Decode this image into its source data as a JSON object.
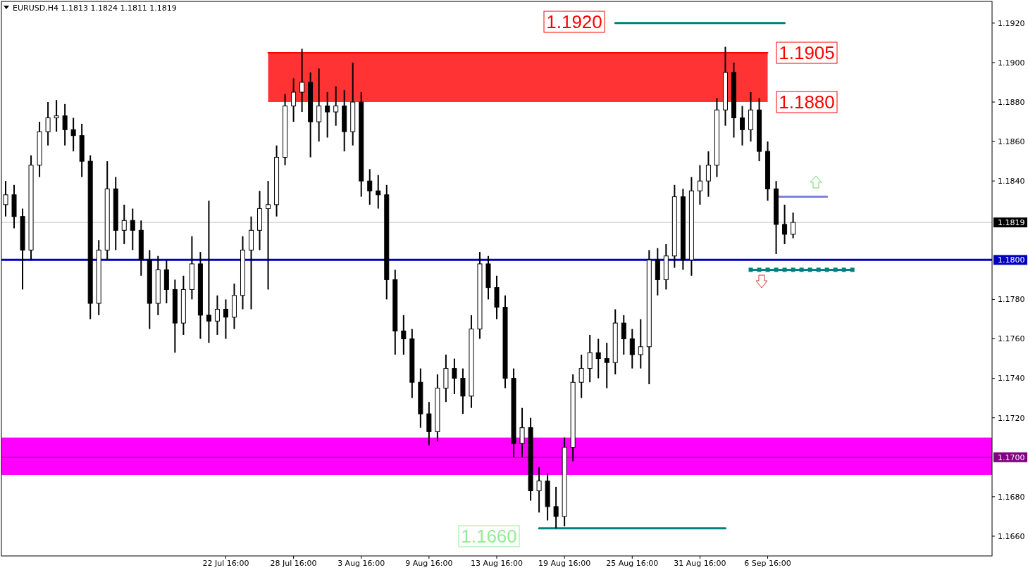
{
  "chart_data": {
    "type": "candlestick",
    "title": "EURUSD,H4  1.1813 1.1824 1.1811 1.1819",
    "categories": [
      null,
      null,
      null,
      null,
      null,
      null,
      null,
      null,
      null,
      null,
      null,
      null,
      null,
      null,
      null,
      null,
      null,
      null,
      null,
      null,
      null,
      null,
      null,
      null,
      null,
      null,
      "22 Jul 16:00",
      null,
      null,
      null,
      null,
      null,
      null,
      null,
      "28 Jul 16:00",
      null,
      null,
      null,
      null,
      null,
      null,
      null,
      "3 Aug 16:00",
      null,
      null,
      null,
      null,
      null,
      null,
      null,
      "9 Aug 16:00",
      null,
      null,
      null,
      null,
      null,
      null,
      null,
      "13 Aug 16:00",
      null,
      null,
      null,
      null,
      null,
      null,
      null,
      "19 Aug 16:00",
      null,
      null,
      null,
      null,
      null,
      null,
      null,
      "25 Aug 16:00",
      null,
      null,
      null,
      null,
      null,
      null,
      null,
      "31 Aug 16:00",
      null,
      null,
      null,
      null,
      null,
      null,
      null,
      "6 Sep 16:00",
      null,
      null,
      null,
      null,
      null,
      null,
      null,
      null,
      null,
      null,
      null,
      null,
      null,
      null,
      null,
      null,
      null,
      null,
      null,
      null,
      null,
      null,
      null,
      null,
      null,
      null
    ],
    "ohlc": [
      [
        1.1828,
        1.184,
        1.1822,
        1.1833
      ],
      [
        1.1833,
        1.1838,
        1.1816,
        1.1822
      ],
      [
        1.1822,
        1.1826,
        1.1785,
        1.1805
      ],
      [
        1.1805,
        1.1853,
        1.18,
        1.1848
      ],
      [
        1.1848,
        1.187,
        1.1842,
        1.1865
      ],
      [
        1.1865,
        1.188,
        1.1858,
        1.1872
      ],
      [
        1.1872,
        1.1881,
        1.1865,
        1.1873
      ],
      [
        1.1873,
        1.1879,
        1.1858,
        1.1866
      ],
      [
        1.1866,
        1.1872,
        1.1855,
        1.1863
      ],
      [
        1.1863,
        1.1869,
        1.1842,
        1.185
      ],
      [
        1.185,
        1.1853,
        1.177,
        1.1778
      ],
      [
        1.1778,
        1.181,
        1.1772,
        1.1805
      ],
      [
        1.1805,
        1.185,
        1.18,
        1.1836
      ],
      [
        1.1836,
        1.1842,
        1.1805,
        1.1815
      ],
      [
        1.1815,
        1.1828,
        1.1808,
        1.182
      ],
      [
        1.182,
        1.1826,
        1.1805,
        1.1815
      ],
      [
        1.1815,
        1.182,
        1.1792,
        1.18
      ],
      [
        1.18,
        1.1805,
        1.1765,
        1.1778
      ],
      [
        1.1778,
        1.1802,
        1.1772,
        1.1795
      ],
      [
        1.1795,
        1.18,
        1.1778,
        1.1785
      ],
      [
        1.1785,
        1.179,
        1.1753,
        1.1768
      ],
      [
        1.1768,
        1.1792,
        1.1762,
        1.1785
      ],
      [
        1.1785,
        1.1812,
        1.178,
        1.1798
      ],
      [
        1.1798,
        1.1804,
        1.176,
        1.1772
      ],
      [
        1.1772,
        1.183,
        1.1758,
        1.1769
      ],
      [
        1.1769,
        1.1782,
        1.1762,
        1.1775
      ],
      [
        1.1775,
        1.178,
        1.176,
        1.1771
      ],
      [
        1.1771,
        1.1788,
        1.1765,
        1.1782
      ],
      [
        1.1782,
        1.1812,
        1.1775,
        1.1805
      ],
      [
        1.1805,
        1.1822,
        1.1775,
        1.1815
      ],
      [
        1.1815,
        1.1835,
        1.1805,
        1.1826
      ],
      [
        1.1826,
        1.184,
        1.1785,
        1.1828
      ],
      [
        1.1828,
        1.1858,
        1.1822,
        1.1852
      ],
      [
        1.1852,
        1.1884,
        1.1848,
        1.1878
      ],
      [
        1.1878,
        1.1892,
        1.187,
        1.1885
      ],
      [
        1.1885,
        1.1907,
        1.1875,
        1.189
      ],
      [
        1.189,
        1.1895,
        1.1852,
        1.187
      ],
      [
        1.187,
        1.1897,
        1.186,
        1.1878
      ],
      [
        1.1878,
        1.1885,
        1.1862,
        1.1875
      ],
      [
        1.1875,
        1.1888,
        1.1868,
        1.1878
      ],
      [
        1.1878,
        1.1886,
        1.1855,
        1.1865
      ],
      [
        1.1865,
        1.19,
        1.1858,
        1.188
      ],
      [
        1.188,
        1.1885,
        1.1832,
        1.184
      ],
      [
        1.184,
        1.1846,
        1.1828,
        1.1835
      ],
      [
        1.1835,
        1.1843,
        1.1826,
        1.1833
      ],
      [
        1.1833,
        1.1838,
        1.178,
        1.179
      ],
      [
        1.179,
        1.1795,
        1.1752,
        1.1764
      ],
      [
        1.1764,
        1.1772,
        1.1752,
        1.176
      ],
      [
        1.176,
        1.1765,
        1.173,
        1.1738
      ],
      [
        1.1738,
        1.1745,
        1.1715,
        1.1722
      ],
      [
        1.1722,
        1.1728,
        1.1706,
        1.1713
      ],
      [
        1.1713,
        1.1742,
        1.1708,
        1.1735
      ],
      [
        1.1735,
        1.1752,
        1.1728,
        1.1745
      ],
      [
        1.1745,
        1.175,
        1.1732,
        1.174
      ],
      [
        1.174,
        1.1745,
        1.1722,
        1.1731
      ],
      [
        1.1731,
        1.1772,
        1.1725,
        1.1765
      ],
      [
        1.1765,
        1.1804,
        1.176,
        1.1798
      ],
      [
        1.1798,
        1.1802,
        1.178,
        1.1786
      ],
      [
        1.1786,
        1.1792,
        1.177,
        1.1776
      ],
      [
        1.1776,
        1.1782,
        1.1735,
        1.174
      ],
      [
        1.174,
        1.1745,
        1.17,
        1.1707
      ],
      [
        1.1707,
        1.1725,
        1.17,
        1.1715
      ],
      [
        1.1715,
        1.172,
        1.1678,
        1.1683
      ],
      [
        1.1683,
        1.1695,
        1.1672,
        1.1688
      ],
      [
        1.1688,
        1.1692,
        1.1668,
        1.1675
      ],
      [
        1.1675,
        1.1685,
        1.1664,
        1.167
      ],
      [
        1.167,
        1.171,
        1.1665,
        1.1705
      ],
      [
        1.1705,
        1.1742,
        1.1698,
        1.1738
      ],
      [
        1.1738,
        1.1752,
        1.173,
        1.1745
      ],
      [
        1.1745,
        1.1762,
        1.1738,
        1.1753
      ],
      [
        1.1753,
        1.176,
        1.174,
        1.175
      ],
      [
        1.175,
        1.1758,
        1.1735,
        1.1748
      ],
      [
        1.1748,
        1.1775,
        1.1742,
        1.1768
      ],
      [
        1.1768,
        1.1772,
        1.1752,
        1.176
      ],
      [
        1.176,
        1.1765,
        1.1745,
        1.1752
      ],
      [
        1.1752,
        1.177,
        1.1745,
        1.1756
      ],
      [
        1.1756,
        1.1805,
        1.1737,
        1.18
      ],
      [
        1.18,
        1.1806,
        1.1782,
        1.179
      ],
      [
        1.179,
        1.1808,
        1.1785,
        1.1802
      ],
      [
        1.1802,
        1.1838,
        1.1796,
        1.1832
      ],
      [
        1.1832,
        1.1836,
        1.1795,
        1.18
      ],
      [
        1.18,
        1.1842,
        1.1792,
        1.1835
      ],
      [
        1.1835,
        1.1848,
        1.1828,
        1.184
      ],
      [
        1.184,
        1.1855,
        1.1832,
        1.1848
      ],
      [
        1.1848,
        1.1882,
        1.1842,
        1.1876
      ],
      [
        1.1876,
        1.1908,
        1.1868,
        1.1895
      ],
      [
        1.1895,
        1.19,
        1.1862,
        1.1872
      ],
      [
        1.1872,
        1.1878,
        1.1858,
        1.1866
      ],
      [
        1.1866,
        1.1885,
        1.186,
        1.1876
      ],
      [
        1.1876,
        1.1882,
        1.185,
        1.1855
      ],
      [
        1.1855,
        1.186,
        1.183,
        1.1836
      ],
      [
        1.1836,
        1.184,
        1.1803,
        1.1818
      ],
      [
        1.1818,
        1.1828,
        1.1808,
        1.1813
      ],
      [
        1.1813,
        1.1824,
        1.1811,
        1.1819
      ],
      null,
      null,
      null,
      null,
      null,
      null,
      null,
      null,
      null,
      null,
      null,
      null,
      null,
      null,
      null,
      null,
      null,
      null,
      null,
      null,
      null,
      null,
      null
    ],
    "series": [
      {
        "type": "line",
        "color": "#ff0000",
        "values": [
          null,
          null,
          null,
          null,
          null,
          null,
          null,
          null,
          null,
          null,
          null,
          null,
          null,
          null,
          null,
          null,
          null,
          null,
          null,
          null,
          null,
          null,
          null,
          null,
          null,
          null,
          null,
          null,
          null,
          null,
          null,
          1.1905,
          1.1905,
          1.1905,
          1.1905,
          1.1905,
          1.1905,
          1.1905,
          1.1905,
          1.1905,
          1.1905,
          1.1905,
          1.1905,
          1.1905,
          1.1905,
          1.1905,
          1.1905,
          1.1905,
          1.1905,
          1.1905,
          1.1905,
          1.1905,
          1.1905,
          1.1905,
          1.1905,
          1.1905,
          1.1905,
          1.1905,
          1.1905,
          1.1905,
          1.1905,
          1.1905,
          1.1905,
          1.1905,
          1.1905,
          1.1905,
          1.1905,
          1.1905,
          1.1905,
          1.1905,
          1.1905,
          1.1905,
          1.1905,
          1.1905,
          1.1905,
          1.1905,
          1.1905,
          1.1905,
          1.1905,
          1.1905,
          1.1905,
          1.1905,
          1.1905,
          1.1905,
          1.1905,
          1.1905,
          1.1905,
          1.1905,
          1.1905,
          1.1905,
          1.1905,
          null,
          null,
          null,
          null,
          null,
          null,
          null,
          null,
          null,
          null,
          null,
          null,
          null,
          null,
          null,
          null,
          null,
          null,
          null,
          null,
          null,
          null,
          null,
          null,
          null,
          null
        ],
        "lower": [
          null,
          null,
          null,
          null,
          null,
          null,
          null,
          null,
          null,
          null,
          null,
          null,
          null,
          null,
          null,
          null,
          null,
          null,
          null,
          null,
          null,
          null,
          null,
          null,
          null,
          null,
          null,
          null,
          null,
          null,
          null,
          1.188,
          1.188,
          1.188,
          1.188,
          1.188,
          1.188,
          1.188,
          1.188,
          1.188,
          1.188,
          1.188,
          1.188,
          1.188,
          1.188,
          1.188,
          1.188,
          1.188,
          1.188,
          1.188,
          1.188,
          1.188,
          1.188,
          1.188,
          1.188,
          1.188,
          1.188,
          1.188,
          1.188,
          1.188,
          1.188,
          1.188,
          1.188,
          1.188,
          1.188,
          1.188,
          1.188,
          1.188,
          1.188,
          1.188,
          1.188,
          1.188,
          1.188,
          1.188,
          1.188,
          1.188,
          1.188,
          1.188,
          1.188,
          1.188,
          1.188,
          1.188,
          1.188,
          1.188,
          1.188,
          1.188,
          1.188,
          1.188,
          1.188,
          1.188,
          1.188,
          null,
          null,
          null,
          null,
          null,
          null,
          null,
          null,
          null,
          null,
          null,
          null,
          null,
          null,
          null,
          null,
          null,
          null,
          null,
          null,
          null,
          null,
          null,
          null,
          null,
          null
        ],
        "upper": [
          null,
          null,
          null,
          null,
          null,
          null,
          null,
          null,
          null,
          null,
          null,
          null,
          null,
          null,
          null,
          null,
          null,
          null,
          null,
          null,
          null,
          null,
          null,
          null,
          null,
          null,
          null,
          null,
          null,
          null,
          null,
          1.1905,
          1.1905,
          1.1905,
          1.1905,
          1.1905,
          1.1905,
          1.1905,
          1.1905,
          1.1905,
          1.1905,
          1.1905,
          1.1905,
          1.1905,
          1.1905,
          1.1905,
          1.1905,
          1.1905,
          1.1905,
          1.1905,
          1.1905,
          1.1905,
          1.1905,
          1.1905,
          1.1905,
          1.1905,
          1.1905,
          1.1905,
          1.1905,
          1.1905,
          1.1905,
          1.1905,
          1.1905,
          1.1905,
          1.1905,
          1.1905,
          1.1905,
          1.1905,
          1.1905,
          1.1905,
          1.1905,
          1.1905,
          1.1905,
          1.1905,
          1.1905,
          1.1905,
          1.1905,
          1.1905,
          1.1905,
          1.1905,
          1.1905,
          1.1905,
          1.1905,
          1.1905,
          1.1905,
          1.1905,
          1.1905,
          1.1905,
          1.1905,
          1.1905,
          1.1905,
          null,
          null,
          null,
          null,
          null,
          null,
          null,
          null,
          null,
          null,
          null,
          null,
          null,
          null,
          null,
          null,
          null,
          null,
          null,
          null,
          null,
          null,
          null,
          null,
          null,
          null
        ]
      },
      {
        "type": "line",
        "color": "#008080",
        "values": [
          null,
          null,
          null,
          null,
          null,
          null,
          null,
          null,
          null,
          null,
          null,
          null,
          null,
          null,
          null,
          null,
          null,
          null,
          null,
          null,
          null,
          null,
          null,
          null,
          null,
          null,
          null,
          null,
          null,
          null,
          null,
          null,
          null,
          null,
          null,
          null,
          null,
          null,
          null,
          null,
          null,
          null,
          null,
          null,
          null,
          null,
          null,
          null,
          null,
          null,
          null,
          null,
          null,
          null,
          null,
          null,
          null,
          null,
          null,
          null,
          null,
          null,
          null,
          null,
          null,
          null,
          null,
          null,
          null,
          null,
          null,
          null,
          1.192,
          1.192,
          1.192,
          1.192,
          1.192,
          1.192,
          1.192,
          1.192,
          1.192,
          1.192,
          1.192,
          1.192,
          1.192,
          1.192,
          1.192,
          1.192,
          1.192,
          1.192,
          1.192,
          1.192,
          1.192,
          null,
          null,
          null,
          null,
          null,
          null,
          null,
          null,
          null,
          null,
          null,
          null,
          null,
          null,
          null,
          null,
          null,
          null,
          null,
          null,
          null,
          null,
          null,
          null
        ]
      },
      {
        "type": "line",
        "color": "#008080",
        "values": [
          null,
          null,
          null,
          null,
          null,
          null,
          null,
          null,
          null,
          null,
          null,
          null,
          null,
          null,
          null,
          null,
          null,
          null,
          null,
          null,
          null,
          null,
          null,
          null,
          null,
          null,
          null,
          null,
          null,
          null,
          null,
          null,
          null,
          null,
          null,
          null,
          null,
          null,
          null,
          null,
          null,
          null,
          null,
          null,
          null,
          null,
          null,
          null,
          null,
          null,
          null,
          null,
          null,
          null,
          null,
          null,
          null,
          null,
          null,
          null,
          null,
          null,
          null,
          1.1664,
          1.1664,
          1.1664,
          1.1664,
          1.1664,
          1.1664,
          1.1664,
          1.1664,
          1.1664,
          1.1664,
          1.1664,
          1.1664,
          1.1664,
          1.1664,
          1.1664,
          1.1664,
          1.1664,
          1.1664,
          1.1664,
          1.1664,
          1.1664,
          1.1664,
          1.1664,
          null,
          null,
          null,
          null,
          null,
          null,
          null,
          null,
          null,
          null,
          null,
          null,
          null,
          null,
          null,
          null,
          null,
          null,
          null,
          null,
          null,
          null,
          null,
          null,
          null,
          null,
          null,
          null,
          null,
          null,
          null
        ]
      },
      {
        "type": "line",
        "color": "#8080e0",
        "values": [
          null,
          null,
          null,
          null,
          null,
          null,
          null,
          null,
          null,
          null,
          null,
          null,
          null,
          null,
          null,
          null,
          null,
          null,
          null,
          null,
          null,
          null,
          null,
          null,
          null,
          null,
          null,
          null,
          null,
          null,
          null,
          null,
          null,
          null,
          null,
          null,
          null,
          null,
          null,
          null,
          null,
          null,
          null,
          null,
          null,
          null,
          null,
          null,
          null,
          null,
          null,
          null,
          null,
          null,
          null,
          null,
          null,
          null,
          null,
          null,
          null,
          null,
          null,
          null,
          null,
          null,
          null,
          null,
          null,
          null,
          null,
          null,
          null,
          null,
          null,
          null,
          null,
          null,
          null,
          null,
          null,
          null,
          null,
          null,
          null,
          null,
          null,
          null,
          null,
          null,
          null,
          1.1832,
          1.1832,
          1.1832,
          1.1832,
          1.1832,
          1.1832,
          1.1832,
          null,
          null,
          null,
          null,
          null,
          null,
          null,
          null,
          null,
          null,
          null,
          null,
          null,
          null,
          null,
          null,
          null,
          null,
          null
        ]
      },
      {
        "type": "line",
        "color": "#008080",
        "marker": "square",
        "values": [
          null,
          null,
          null,
          null,
          null,
          null,
          null,
          null,
          null,
          null,
          null,
          null,
          null,
          null,
          null,
          null,
          null,
          null,
          null,
          null,
          null,
          null,
          null,
          null,
          null,
          null,
          null,
          null,
          null,
          null,
          null,
          null,
          null,
          null,
          null,
          null,
          null,
          null,
          null,
          null,
          null,
          null,
          null,
          null,
          null,
          null,
          null,
          null,
          null,
          null,
          null,
          null,
          null,
          null,
          null,
          null,
          null,
          null,
          null,
          null,
          null,
          null,
          null,
          null,
          null,
          null,
          null,
          null,
          null,
          null,
          null,
          null,
          null,
          null,
          null,
          null,
          null,
          null,
          null,
          null,
          null,
          null,
          null,
          null,
          null,
          null,
          null,
          null,
          1.1795,
          1.1795,
          1.1795,
          1.1795,
          1.1795,
          1.1795,
          1.1795,
          1.1795,
          1.1795,
          1.1795,
          1.1795,
          1.1795,
          1.1795,
          null,
          null,
          null,
          null,
          null,
          null,
          null,
          null,
          null,
          null,
          null,
          null,
          null,
          null,
          null,
          null
        ]
      }
    ],
    "bands": [
      {
        "axis": "y",
        "from": 1.1691,
        "to": 1.171,
        "color": "#ff00ff"
      }
    ],
    "ref_lines": [
      {
        "axis": "y",
        "value": 1.1819,
        "label": "1.1819",
        "color": "#c0c0c0"
      },
      {
        "axis": "y",
        "value": 1.18,
        "label": "1.1800",
        "color": "#0000c0"
      },
      {
        "axis": "y",
        "value": 1.17,
        "label": "1.1700",
        "color": "#800080"
      }
    ],
    "annotations": [
      "1.1920",
      "1.1905",
      "1.1880",
      "1.1660"
    ],
    "ylim": [
      1.165,
      1.1931
    ],
    "yticks": [
      {
        "value": 1.166,
        "label": "1.1660"
      },
      {
        "value": 1.168,
        "label": "1.1680"
      },
      {
        "value": 1.172,
        "label": "1.1720"
      },
      {
        "value": 1.174,
        "label": "1.1740"
      },
      {
        "value": 1.176,
        "label": "1.1760"
      },
      {
        "value": 1.178,
        "label": "1.1780"
      },
      {
        "value": 1.184,
        "label": "1.1840"
      },
      {
        "value": 1.186,
        "label": "1.1860"
      },
      {
        "value": 1.188,
        "label": "1.1880"
      },
      {
        "value": 1.19,
        "label": "1.1900"
      },
      {
        "value": 1.192,
        "label": "1.1920"
      }
    ]
  }
}
